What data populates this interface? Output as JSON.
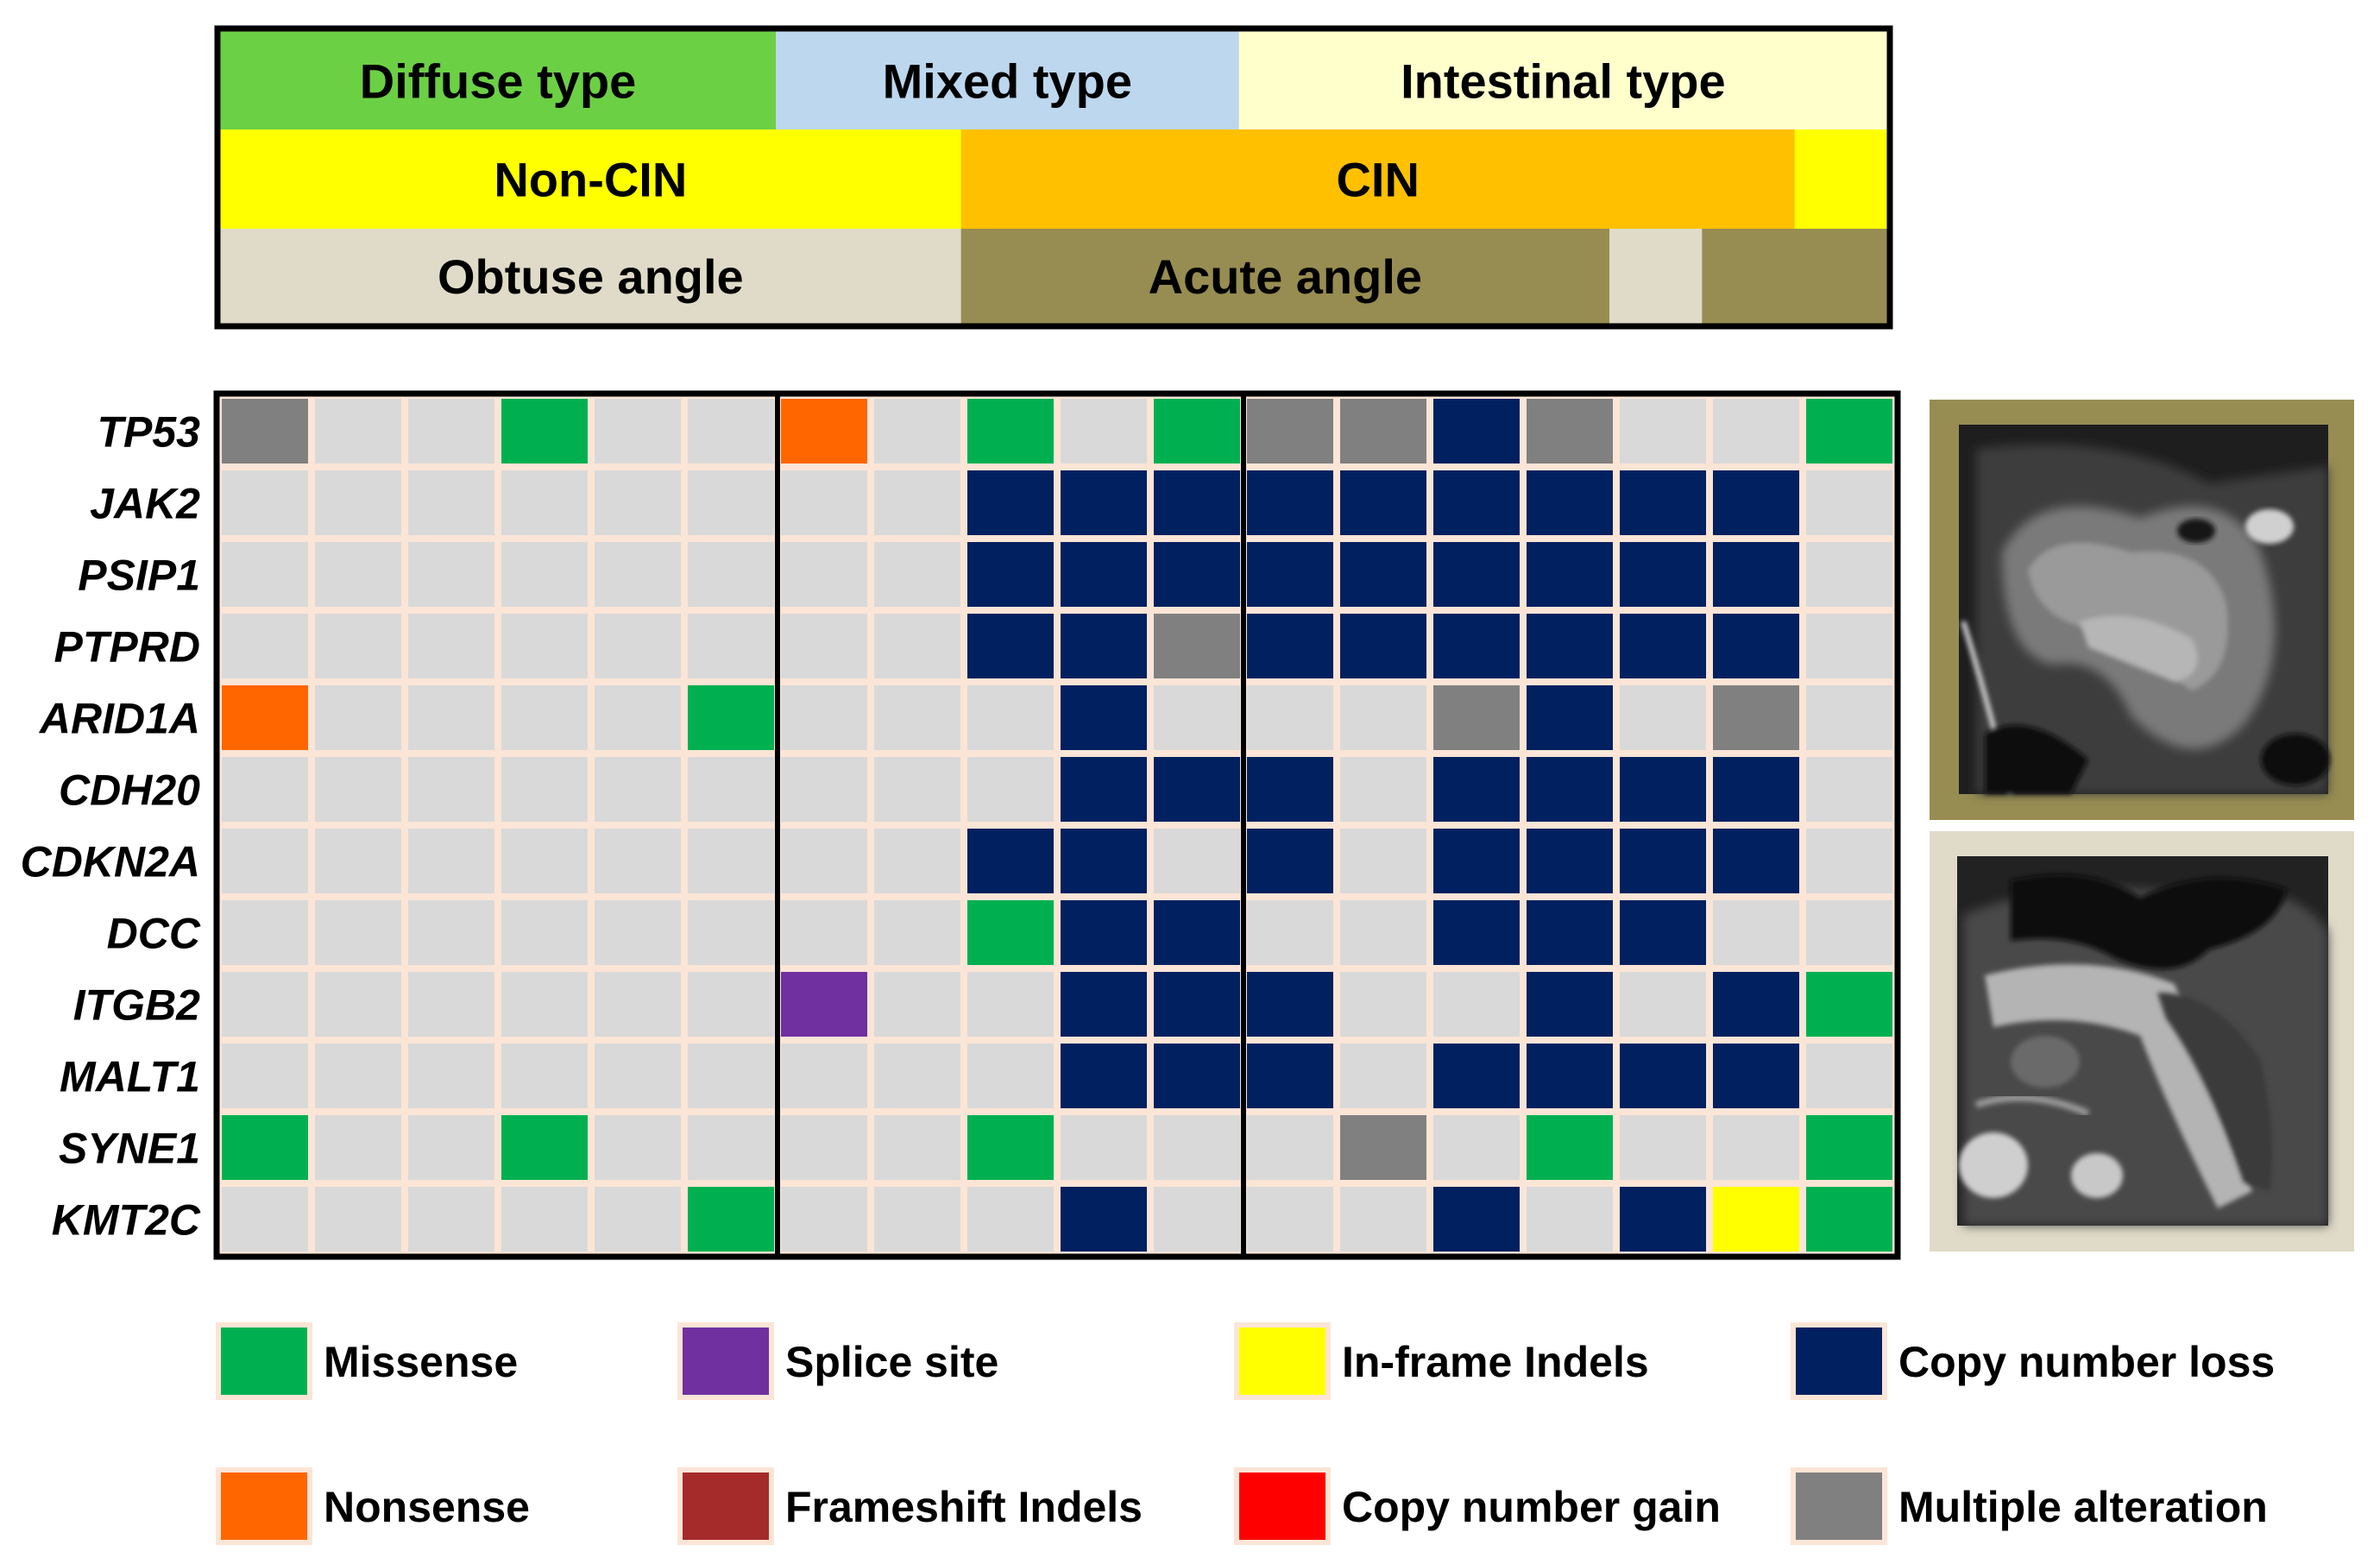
{
  "chart_data": {
    "type": "heatmap",
    "header_rows": [
      {
        "name": "histology",
        "segments": [
          {
            "label": "Diffuse type",
            "from": 0,
            "to": 6,
            "color": "#6cd045"
          },
          {
            "label": "Mixed type",
            "from": 6,
            "to": 11,
            "color": "#bdd7ee"
          },
          {
            "label": "Intestinal type",
            "from": 11,
            "to": 18,
            "color": "#ffffcc"
          }
        ]
      },
      {
        "name": "cin-status",
        "segments": [
          {
            "label": "Non-CIN",
            "from": 0,
            "to": 8,
            "color": "#ffff00"
          },
          {
            "label": "CIN",
            "from": 8,
            "to": 17,
            "color": "#ffc000"
          },
          {
            "label": "",
            "from": 17,
            "to": 18,
            "color": "#ffff00"
          }
        ]
      },
      {
        "name": "angle",
        "segments": [
          {
            "label": "Obtuse angle",
            "from": 0,
            "to": 8,
            "color": "#e0dbc8"
          },
          {
            "label": "Acute angle",
            "from": 8,
            "to": 15,
            "color": "#978d52"
          },
          {
            "label": "",
            "from": 15,
            "to": 16,
            "color": "#e0dbc8"
          },
          {
            "label": "",
            "from": 16,
            "to": 18,
            "color": "#978d52"
          }
        ]
      }
    ],
    "group_boundaries": [
      6,
      11
    ],
    "genes": [
      "TP53",
      "JAK2",
      "PSIP1",
      "PTPRD",
      "ARID1A",
      "CDH20",
      "CDKN2A",
      "DCC",
      "ITGB2",
      "MALT1",
      "SYNE1",
      "KMT2C"
    ],
    "num_samples": 18,
    "matrix": [
      [
        "X",
        "0",
        "0",
        "M",
        "0",
        "0",
        "N",
        "0",
        "M",
        "0",
        "M",
        "X",
        "X",
        "L",
        "X",
        "0",
        "0",
        "M"
      ],
      [
        "0",
        "0",
        "0",
        "0",
        "0",
        "0",
        "0",
        "0",
        "L",
        "L",
        "L",
        "L",
        "L",
        "L",
        "L",
        "L",
        "L",
        "0"
      ],
      [
        "0",
        "0",
        "0",
        "0",
        "0",
        "0",
        "0",
        "0",
        "L",
        "L",
        "L",
        "L",
        "L",
        "L",
        "L",
        "L",
        "L",
        "0"
      ],
      [
        "0",
        "0",
        "0",
        "0",
        "0",
        "0",
        "0",
        "0",
        "L",
        "L",
        "X",
        "L",
        "L",
        "L",
        "L",
        "L",
        "L",
        "0"
      ],
      [
        "N",
        "0",
        "0",
        "0",
        "0",
        "M",
        "0",
        "0",
        "0",
        "L",
        "0",
        "0",
        "0",
        "X",
        "L",
        "0",
        "X",
        "0"
      ],
      [
        "0",
        "0",
        "0",
        "0",
        "0",
        "0",
        "0",
        "0",
        "0",
        "L",
        "L",
        "L",
        "0",
        "L",
        "L",
        "L",
        "L",
        "0"
      ],
      [
        "0",
        "0",
        "0",
        "0",
        "0",
        "0",
        "0",
        "0",
        "L",
        "L",
        "0",
        "L",
        "0",
        "L",
        "L",
        "L",
        "L",
        "0"
      ],
      [
        "0",
        "0",
        "0",
        "0",
        "0",
        "0",
        "0",
        "0",
        "M",
        "L",
        "L",
        "0",
        "0",
        "L",
        "L",
        "L",
        "0",
        "0"
      ],
      [
        "0",
        "0",
        "0",
        "0",
        "0",
        "0",
        "S",
        "0",
        "0",
        "L",
        "L",
        "L",
        "0",
        "0",
        "L",
        "0",
        "L",
        "M"
      ],
      [
        "0",
        "0",
        "0",
        "0",
        "0",
        "0",
        "0",
        "0",
        "0",
        "L",
        "L",
        "L",
        "0",
        "L",
        "L",
        "L",
        "L",
        "0"
      ],
      [
        "M",
        "0",
        "0",
        "M",
        "0",
        "0",
        "0",
        "0",
        "M",
        "0",
        "0",
        "0",
        "X",
        "0",
        "M",
        "0",
        "0",
        "M"
      ],
      [
        "0",
        "0",
        "0",
        "0",
        "0",
        "M",
        "0",
        "0",
        "0",
        "L",
        "0",
        "0",
        "0",
        "L",
        "0",
        "L",
        "I",
        "M"
      ]
    ],
    "categories": {
      "0": {
        "label": "",
        "color": "#d9d9d9"
      },
      "M": {
        "label": "Missense",
        "color": "#00b050"
      },
      "N": {
        "label": "Nonsense",
        "color": "#ff6600"
      },
      "S": {
        "label": "Splice site",
        "color": "#7030a0"
      },
      "F": {
        "label": "Frameshift Indels",
        "color": "#a52a2a"
      },
      "I": {
        "label": "In-frame Indels",
        "color": "#ffff00"
      },
      "G": {
        "label": "Copy number gain",
        "color": "#ff0000"
      },
      "L": {
        "label": "Copy number loss",
        "color": "#002060"
      },
      "X": {
        "label": "Multiple alteration",
        "color": "#808080"
      }
    },
    "legend": [
      {
        "code": "M",
        "label": "Missense"
      },
      {
        "code": "S",
        "label": "Splice site"
      },
      {
        "code": "I",
        "label": "In-frame Indels"
      },
      {
        "code": "L",
        "label": "Copy number loss"
      },
      {
        "code": "N",
        "label": "Nonsense"
      },
      {
        "code": "F",
        "label": "Frameshift Indels"
      },
      {
        "code": "G",
        "label": "Copy number gain"
      },
      {
        "code": "X",
        "label": "Multiple alteration"
      }
    ],
    "grid_line_color": "#fbe5d6",
    "side_images": [
      {
        "name": "ct-image-acute-angle",
        "frame_color": "#978d52"
      },
      {
        "name": "ct-image-obtuse-angle",
        "frame_color": "#e0dbc8"
      }
    ]
  }
}
